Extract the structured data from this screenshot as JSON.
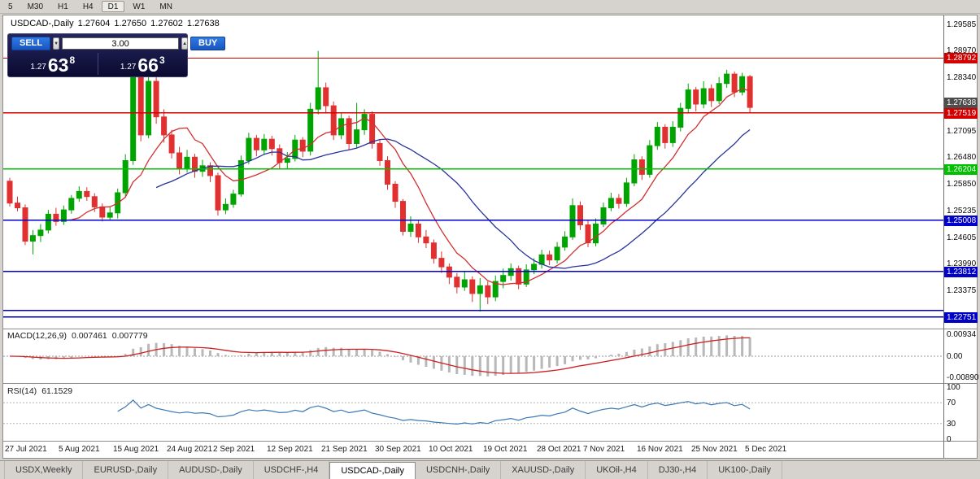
{
  "toolbar": {
    "periods": [
      {
        "label": "5",
        "active": false
      },
      {
        "label": "M30",
        "active": false
      },
      {
        "label": "H1",
        "active": false
      },
      {
        "label": "H4",
        "active": false
      },
      {
        "label": "D1",
        "active": true
      },
      {
        "label": "W1",
        "active": false
      },
      {
        "label": "MN",
        "active": false
      }
    ]
  },
  "chart": {
    "quote": {
      "title": "USDCAD-,Daily",
      "open": "1.27604",
      "high": "1.27650",
      "low": "1.27602",
      "close": "1.27638"
    },
    "trade_panel": {
      "sell_label": "SELL",
      "buy_label": "BUY",
      "volume": "3.00",
      "sell_price": {
        "prefix": "1.27",
        "big": "63",
        "pip": "8"
      },
      "buy_price": {
        "prefix": "1.27",
        "big": "66",
        "pip": "3"
      }
    }
  },
  "chart_data": {
    "type": "candlestick",
    "symbol": "USDCAD-",
    "timeframe": "Daily",
    "price_range": {
      "top": 1.2975,
      "bottom": 1.225
    },
    "price_axis_labels": [
      "1.29585",
      "1.28970",
      "1.28340",
      "1.27725",
      "1.27095",
      "1.26480",
      "1.25850",
      "1.25235",
      "1.24605",
      "1.23990",
      "1.23375"
    ],
    "up_color": "#00A400",
    "down_color": "#E03030",
    "ma_fast": {
      "period": 8,
      "color": "#D03030"
    },
    "ma_slow": {
      "period": 20,
      "color": "#28329B"
    },
    "lines": [
      {
        "price": 1.28792,
        "color": "#D40000",
        "label": "1.28792"
      },
      {
        "price": 1.27519,
        "color": "#D40000",
        "label": "1.27519"
      },
      {
        "price": 1.26204,
        "color": "#00C000",
        "label": "1.26204"
      },
      {
        "price": 1.25008,
        "color": "#0000C8",
        "label": "1.25008"
      },
      {
        "price": 1.229,
        "color": "#0000C8"
      },
      {
        "price": 1.23812,
        "color": "#0000C8",
        "label": "1.23812"
      },
      {
        "price": 1.22751,
        "color": "#0000C8",
        "label": "1.22751"
      }
    ],
    "bid": {
      "price": 1.27638,
      "label": "1.27638",
      "color": "#4D4D4D"
    },
    "candles": [
      [
        1.2592,
        1.26,
        1.2533,
        1.2541
      ],
      [
        1.2541,
        1.2556,
        1.2522,
        1.253
      ],
      [
        1.253,
        1.2538,
        1.2443,
        1.2452
      ],
      [
        1.2452,
        1.2478,
        1.2421,
        1.2465
      ],
      [
        1.2465,
        1.2492,
        1.245,
        1.2478
      ],
      [
        1.2478,
        1.2525,
        1.247,
        1.2515
      ],
      [
        1.2515,
        1.253,
        1.2488,
        1.2498
      ],
      [
        1.2498,
        1.2535,
        1.249,
        1.2525
      ],
      [
        1.2525,
        1.256,
        1.2516,
        1.2552
      ],
      [
        1.2552,
        1.258,
        1.2544,
        1.2568
      ],
      [
        1.2568,
        1.2578,
        1.2546,
        1.2556
      ],
      [
        1.2556,
        1.2564,
        1.252,
        1.2532
      ],
      [
        1.2532,
        1.254,
        1.2498,
        1.2508
      ],
      [
        1.2508,
        1.2532,
        1.25,
        1.2518
      ],
      [
        1.2518,
        1.2575,
        1.2505,
        1.2565
      ],
      [
        1.2565,
        1.2655,
        1.2555,
        1.264
      ],
      [
        1.264,
        1.2848,
        1.263,
        1.2835
      ],
      [
        1.2835,
        1.2845,
        1.2685,
        1.27
      ],
      [
        1.27,
        1.284,
        1.2692,
        1.2825
      ],
      [
        1.2825,
        1.2838,
        1.2726,
        1.2742
      ],
      [
        1.2742,
        1.276,
        1.2682,
        1.27
      ],
      [
        1.27,
        1.2712,
        1.2645,
        1.2658
      ],
      [
        1.2658,
        1.2672,
        1.2608,
        1.2622
      ],
      [
        1.2622,
        1.2665,
        1.2612,
        1.2648
      ],
      [
        1.2648,
        1.2656,
        1.26,
        1.2615
      ],
      [
        1.2615,
        1.2642,
        1.2602,
        1.2628
      ],
      [
        1.2628,
        1.2636,
        1.259,
        1.2605
      ],
      [
        1.2605,
        1.2612,
        1.2512,
        1.2525
      ],
      [
        1.2525,
        1.2552,
        1.2515,
        1.2538
      ],
      [
        1.2538,
        1.2572,
        1.253,
        1.2562
      ],
      [
        1.2562,
        1.2652,
        1.2556,
        1.264
      ],
      [
        1.264,
        1.2705,
        1.2632,
        1.2692
      ],
      [
        1.2692,
        1.27,
        1.265,
        1.2665
      ],
      [
        1.2665,
        1.2702,
        1.2655,
        1.269
      ],
      [
        1.269,
        1.2698,
        1.2652,
        1.2668
      ],
      [
        1.2668,
        1.2678,
        1.2622,
        1.2636
      ],
      [
        1.2636,
        1.266,
        1.262,
        1.2645
      ],
      [
        1.2645,
        1.27,
        1.2638,
        1.2688
      ],
      [
        1.2688,
        1.2695,
        1.2648,
        1.2662
      ],
      [
        1.2662,
        1.2775,
        1.2652,
        1.276
      ],
      [
        1.276,
        1.2896,
        1.2748,
        1.281
      ],
      [
        1.281,
        1.2822,
        1.275,
        1.2768
      ],
      [
        1.2768,
        1.2778,
        1.2688,
        1.27
      ],
      [
        1.27,
        1.275,
        1.269,
        1.2738
      ],
      [
        1.2738,
        1.2745,
        1.2665,
        1.268
      ],
      [
        1.268,
        1.2775,
        1.267,
        1.2712
      ],
      [
        1.2712,
        1.276,
        1.27,
        1.2748
      ],
      [
        1.2748,
        1.2755,
        1.2668,
        1.268
      ],
      [
        1.268,
        1.2688,
        1.2628,
        1.264
      ],
      [
        1.264,
        1.265,
        1.2572,
        1.2585
      ],
      [
        1.2585,
        1.2592,
        1.253,
        1.2545
      ],
      [
        1.2545,
        1.255,
        1.2465,
        1.2475
      ],
      [
        1.2475,
        1.251,
        1.2462,
        1.2492
      ],
      [
        1.2492,
        1.25,
        1.2448,
        1.2462
      ],
      [
        1.2462,
        1.2478,
        1.2436,
        1.2448
      ],
      [
        1.2448,
        1.2456,
        1.24,
        1.2412
      ],
      [
        1.2412,
        1.2428,
        1.2378,
        1.2392
      ],
      [
        1.2392,
        1.24,
        1.2352,
        1.2368
      ],
      [
        1.2368,
        1.2378,
        1.233,
        1.2345
      ],
      [
        1.2345,
        1.2382,
        1.2336,
        1.2362
      ],
      [
        1.2362,
        1.237,
        1.231,
        1.233
      ],
      [
        1.233,
        1.2366,
        1.2288,
        1.2348
      ],
      [
        1.2348,
        1.2358,
        1.2305,
        1.2322
      ],
      [
        1.2322,
        1.2372,
        1.2312,
        1.2358
      ],
      [
        1.2358,
        1.2388,
        1.2342,
        1.2372
      ],
      [
        1.2372,
        1.24,
        1.236,
        1.2388
      ],
      [
        1.2388,
        1.2395,
        1.234,
        1.2352
      ],
      [
        1.2352,
        1.2398,
        1.2345,
        1.2385
      ],
      [
        1.2385,
        1.2412,
        1.2375,
        1.2398
      ],
      [
        1.2398,
        1.2432,
        1.2388,
        1.242
      ],
      [
        1.242,
        1.243,
        1.2396,
        1.2408
      ],
      [
        1.2408,
        1.245,
        1.24,
        1.2438
      ],
      [
        1.2438,
        1.2475,
        1.243,
        1.2462
      ],
      [
        1.2462,
        1.2552,
        1.2455,
        1.2535
      ],
      [
        1.2535,
        1.2545,
        1.2478,
        1.249
      ],
      [
        1.249,
        1.25,
        1.2438,
        1.2448
      ],
      [
        1.2448,
        1.2505,
        1.244,
        1.2492
      ],
      [
        1.2492,
        1.2542,
        1.2485,
        1.253
      ],
      [
        1.253,
        1.2565,
        1.2522,
        1.2552
      ],
      [
        1.2552,
        1.2562,
        1.2528,
        1.254
      ],
      [
        1.254,
        1.26,
        1.2532,
        1.2588
      ],
      [
        1.2588,
        1.2655,
        1.258,
        1.2642
      ],
      [
        1.2642,
        1.265,
        1.2595,
        1.2608
      ],
      [
        1.2608,
        1.2688,
        1.26,
        1.2675
      ],
      [
        1.2675,
        1.273,
        1.2665,
        1.2718
      ],
      [
        1.2718,
        1.2725,
        1.2668,
        1.2682
      ],
      [
        1.2682,
        1.2732,
        1.2672,
        1.2718
      ],
      [
        1.2718,
        1.2775,
        1.2708,
        1.2762
      ],
      [
        1.2762,
        1.282,
        1.275,
        1.2805
      ],
      [
        1.2805,
        1.2812,
        1.2755,
        1.2772
      ],
      [
        1.2772,
        1.2825,
        1.2762,
        1.2808
      ],
      [
        1.2808,
        1.2818,
        1.2765,
        1.278
      ],
      [
        1.278,
        1.2835,
        1.2772,
        1.282
      ],
      [
        1.282,
        1.2852,
        1.281,
        1.2842
      ],
      [
        1.2842,
        1.2848,
        1.2788,
        1.28
      ],
      [
        1.28,
        1.2845,
        1.2792,
        1.2836
      ],
      [
        1.2836,
        1.284,
        1.2752,
        1.2764
      ]
    ],
    "macd": {
      "name": "MACD(12,26,9)",
      "value1": "0.007461",
      "value2": "0.007779",
      "axis": [
        "0.00934",
        "0.00",
        "-0.00890"
      ],
      "hist_color": "#B8B8B8",
      "signal_color": "#CC2020",
      "fast": 12,
      "slow": 26,
      "signal": 9
    },
    "rsi": {
      "name": "RSI(14)",
      "value": "61.1529",
      "axis": [
        "100",
        "70",
        "30",
        "0"
      ],
      "levels": [
        70,
        30
      ],
      "color": "#3C78B4",
      "period": 14
    },
    "dates": [
      "27 Jul 2021",
      "5 Aug 2021",
      "15 Aug 2021",
      "24 Aug 2021",
      "2 Sep 2021",
      "12 Sep 2021",
      "21 Sep 2021",
      "30 Sep 2021",
      "10 Oct 2021",
      "19 Oct 2021",
      "28 Oct 2021",
      "7 Nov 2021",
      "16 Nov 2021",
      "25 Nov 2021",
      "5 Dec 2021"
    ],
    "date_indices": [
      0,
      7,
      14,
      21,
      27,
      34,
      41,
      48,
      55,
      62,
      69,
      75,
      82,
      89,
      96
    ]
  },
  "tabs": [
    {
      "label": "USDX,Weekly",
      "active": false
    },
    {
      "label": "EURUSD-,Daily",
      "active": false
    },
    {
      "label": "AUDUSD-,Daily",
      "active": false
    },
    {
      "label": "USDCHF-,H4",
      "active": false
    },
    {
      "label": "USDCAD-,Daily",
      "active": true
    },
    {
      "label": "USDCNH-,Daily",
      "active": false
    },
    {
      "label": "XAUUSD-,Daily",
      "active": false
    },
    {
      "label": "UKOil-,H4",
      "active": false
    },
    {
      "label": "DJ30-,H4",
      "active": false
    },
    {
      "label": "UK100-,Daily",
      "active": false
    }
  ]
}
